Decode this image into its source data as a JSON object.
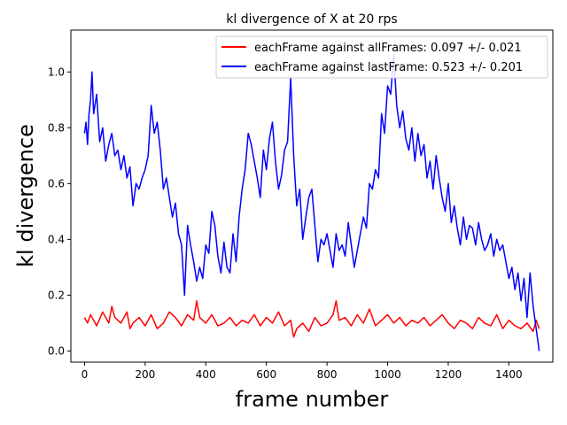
{
  "chart_data": {
    "type": "line",
    "title": "kl divergence of X at 20 rps",
    "xlabel": "frame number",
    "ylabel": "kl divergence",
    "xlim": [
      -45,
      1545
    ],
    "ylim": [
      -0.04,
      1.15
    ],
    "xticks": [
      0,
      200,
      400,
      600,
      800,
      1000,
      1200,
      1400
    ],
    "yticks": [
      0.0,
      0.2,
      0.4,
      0.6,
      0.8,
      1.0
    ],
    "ytick_labels": [
      "0.0",
      "0.2",
      "0.4",
      "0.6",
      "0.8",
      "1.0"
    ],
    "legend_position": "top-right",
    "series": [
      {
        "name": "eachFrame against allFrames: 0.097 +/- 0.021",
        "color": "#ff0000",
        "x": [
          0,
          10,
          20,
          40,
          60,
          80,
          90,
          100,
          120,
          140,
          150,
          160,
          180,
          200,
          220,
          240,
          260,
          280,
          300,
          320,
          340,
          360,
          370,
          380,
          400,
          420,
          440,
          460,
          480,
          500,
          520,
          540,
          560,
          580,
          600,
          620,
          640,
          660,
          680,
          690,
          700,
          720,
          740,
          760,
          780,
          800,
          820,
          830,
          840,
          860,
          880,
          900,
          920,
          940,
          960,
          980,
          1000,
          1020,
          1040,
          1060,
          1080,
          1100,
          1120,
          1140,
          1160,
          1180,
          1200,
          1220,
          1240,
          1260,
          1280,
          1300,
          1320,
          1340,
          1360,
          1380,
          1400,
          1420,
          1440,
          1460,
          1480,
          1490,
          1500
        ],
        "values": [
          0.12,
          0.1,
          0.13,
          0.09,
          0.14,
          0.1,
          0.16,
          0.12,
          0.1,
          0.14,
          0.08,
          0.1,
          0.12,
          0.09,
          0.13,
          0.08,
          0.1,
          0.14,
          0.12,
          0.09,
          0.13,
          0.11,
          0.18,
          0.12,
          0.1,
          0.13,
          0.09,
          0.1,
          0.12,
          0.09,
          0.11,
          0.1,
          0.13,
          0.09,
          0.12,
          0.1,
          0.14,
          0.09,
          0.11,
          0.05,
          0.08,
          0.1,
          0.07,
          0.12,
          0.09,
          0.1,
          0.13,
          0.18,
          0.11,
          0.12,
          0.09,
          0.13,
          0.1,
          0.15,
          0.09,
          0.11,
          0.13,
          0.1,
          0.12,
          0.09,
          0.11,
          0.1,
          0.12,
          0.09,
          0.11,
          0.13,
          0.1,
          0.08,
          0.11,
          0.1,
          0.08,
          0.12,
          0.1,
          0.09,
          0.13,
          0.08,
          0.11,
          0.09,
          0.08,
          0.1,
          0.07,
          0.11,
          0.08
        ]
      },
      {
        "name": "eachFrame against lastFrame: 0.523 +/- 0.201",
        "color": "#0000ff",
        "x": [
          0,
          5,
          10,
          15,
          20,
          25,
          30,
          40,
          50,
          60,
          70,
          80,
          90,
          100,
          110,
          120,
          130,
          140,
          150,
          160,
          170,
          180,
          190,
          200,
          210,
          220,
          230,
          240,
          250,
          260,
          270,
          280,
          290,
          300,
          310,
          320,
          330,
          340,
          350,
          360,
          370,
          380,
          390,
          400,
          410,
          420,
          430,
          440,
          450,
          460,
          470,
          480,
          490,
          500,
          510,
          520,
          530,
          540,
          550,
          560,
          570,
          580,
          590,
          600,
          610,
          620,
          630,
          640,
          650,
          660,
          670,
          680,
          690,
          700,
          710,
          720,
          730,
          740,
          750,
          760,
          770,
          780,
          790,
          800,
          810,
          820,
          830,
          840,
          850,
          860,
          870,
          880,
          890,
          900,
          910,
          920,
          930,
          940,
          950,
          960,
          970,
          980,
          990,
          1000,
          1010,
          1020,
          1030,
          1040,
          1050,
          1060,
          1070,
          1080,
          1090,
          1100,
          1110,
          1120,
          1130,
          1140,
          1150,
          1160,
          1170,
          1180,
          1190,
          1200,
          1210,
          1220,
          1230,
          1240,
          1250,
          1260,
          1270,
          1280,
          1290,
          1300,
          1310,
          1320,
          1330,
          1340,
          1350,
          1360,
          1370,
          1380,
          1390,
          1400,
          1410,
          1420,
          1430,
          1440,
          1450,
          1460,
          1470,
          1480,
          1490,
          1500
        ],
        "values": [
          0.78,
          0.82,
          0.74,
          0.85,
          0.9,
          1.0,
          0.85,
          0.92,
          0.75,
          0.8,
          0.68,
          0.74,
          0.78,
          0.7,
          0.72,
          0.65,
          0.7,
          0.62,
          0.66,
          0.52,
          0.6,
          0.58,
          0.62,
          0.65,
          0.7,
          0.88,
          0.78,
          0.82,
          0.72,
          0.58,
          0.62,
          0.55,
          0.48,
          0.53,
          0.42,
          0.38,
          0.2,
          0.45,
          0.38,
          0.32,
          0.25,
          0.3,
          0.26,
          0.38,
          0.35,
          0.5,
          0.45,
          0.34,
          0.28,
          0.39,
          0.3,
          0.28,
          0.42,
          0.32,
          0.48,
          0.58,
          0.65,
          0.78,
          0.74,
          0.68,
          0.62,
          0.55,
          0.72,
          0.65,
          0.76,
          0.82,
          0.68,
          0.58,
          0.63,
          0.72,
          0.75,
          0.98,
          0.7,
          0.52,
          0.58,
          0.4,
          0.48,
          0.55,
          0.58,
          0.45,
          0.32,
          0.4,
          0.38,
          0.42,
          0.36,
          0.3,
          0.42,
          0.36,
          0.38,
          0.34,
          0.46,
          0.38,
          0.3,
          0.36,
          0.42,
          0.48,
          0.44,
          0.6,
          0.58,
          0.65,
          0.62,
          0.85,
          0.78,
          0.95,
          0.92,
          1.06,
          0.88,
          0.8,
          0.86,
          0.76,
          0.72,
          0.8,
          0.68,
          0.78,
          0.7,
          0.74,
          0.62,
          0.68,
          0.58,
          0.7,
          0.62,
          0.55,
          0.5,
          0.6,
          0.46,
          0.52,
          0.44,
          0.38,
          0.48,
          0.4,
          0.45,
          0.44,
          0.38,
          0.46,
          0.4,
          0.36,
          0.38,
          0.42,
          0.34,
          0.4,
          0.36,
          0.38,
          0.32,
          0.26,
          0.3,
          0.22,
          0.28,
          0.18,
          0.26,
          0.12,
          0.28,
          0.16,
          0.08,
          0.0
        ]
      }
    ]
  }
}
